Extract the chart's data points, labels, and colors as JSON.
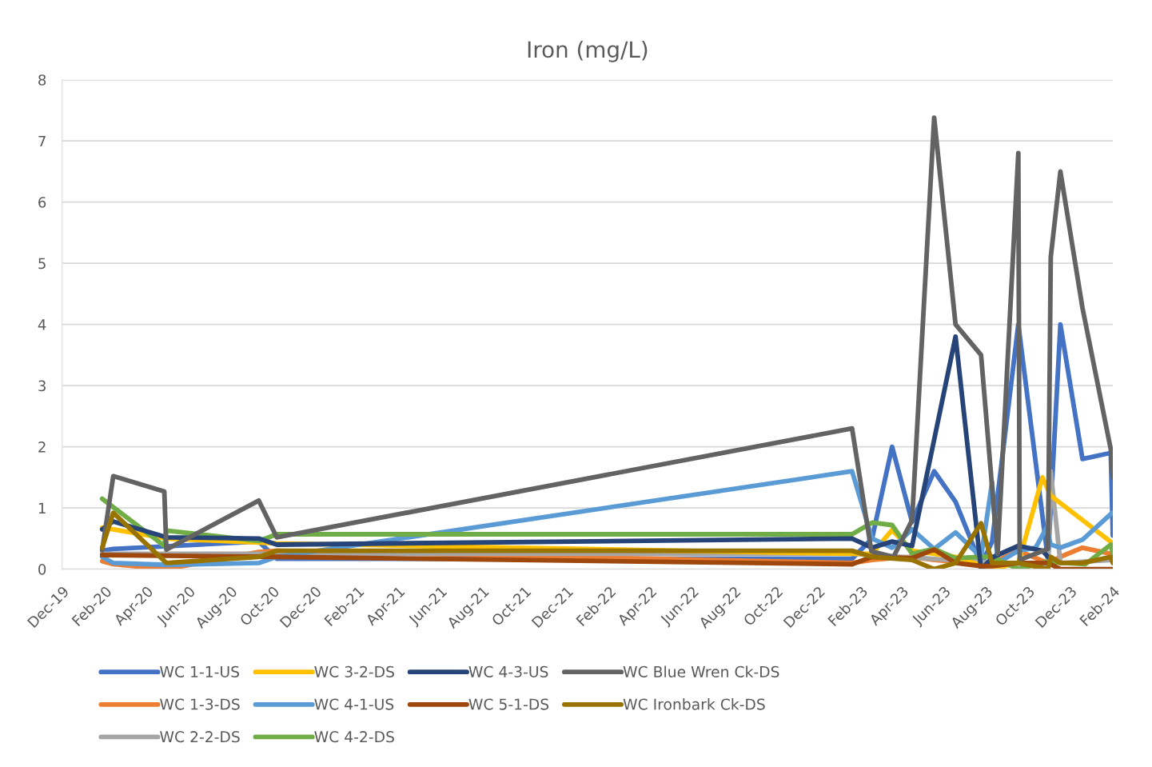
{
  "chart_data": {
    "type": "line",
    "title": "Iron (mg/L)",
    "xlim": [
      "2019-12-01",
      "2024-02-01"
    ],
    "xticks": [
      {
        "value": "2019-12",
        "label": "Dec-19"
      },
      {
        "value": "2020-02",
        "label": "Feb-20"
      },
      {
        "value": "2020-04",
        "label": "Apr-20"
      },
      {
        "value": "2020-06",
        "label": "Jun-20"
      },
      {
        "value": "2020-08",
        "label": "Aug-20"
      },
      {
        "value": "2020-10",
        "label": "Oct-20"
      },
      {
        "value": "2020-12",
        "label": "Dec-20"
      },
      {
        "value": "2021-02",
        "label": "Feb-21"
      },
      {
        "value": "2021-04",
        "label": "Apr-21"
      },
      {
        "value": "2021-06",
        "label": "Jun-21"
      },
      {
        "value": "2021-08",
        "label": "Aug-21"
      },
      {
        "value": "2021-10",
        "label": "Oct-21"
      },
      {
        "value": "2021-12",
        "label": "Dec-21"
      },
      {
        "value": "2022-02",
        "label": "Feb-22"
      },
      {
        "value": "2022-04",
        "label": "Apr-22"
      },
      {
        "value": "2022-06",
        "label": "Jun-22"
      },
      {
        "value": "2022-08",
        "label": "Aug-22"
      },
      {
        "value": "2022-10",
        "label": "Oct-22"
      },
      {
        "value": "2022-12",
        "label": "Dec-22"
      },
      {
        "value": "2023-02",
        "label": "Feb-23"
      },
      {
        "value": "2023-04",
        "label": "Apr-23"
      },
      {
        "value": "2023-06",
        "label": "Jun-23"
      },
      {
        "value": "2023-08",
        "label": "Aug-23"
      },
      {
        "value": "2023-10",
        "label": "Oct-23"
      },
      {
        "value": "2023-12",
        "label": "Dec-23"
      },
      {
        "value": "2024-02",
        "label": "Feb-24"
      }
    ],
    "ylim": [
      0,
      8
    ],
    "yticks": [
      0,
      1,
      2,
      3,
      4,
      5,
      6,
      7,
      8
    ],
    "grid": "y",
    "legend": "bottom",
    "marker": "none",
    "line_style": "solid",
    "series": [
      {
        "name": "WC 1-1-US",
        "color": "#4472c4",
        "x": [
          "2020-01-28",
          "2020-02-13",
          "2020-09-11",
          "2020-10-07",
          "2023-01-19",
          "2023-02-17",
          "2023-03-18",
          "2023-04-16",
          "2023-05-18",
          "2023-06-18",
          "2023-07-25",
          "2023-08-10",
          "2023-09-17",
          "2023-10-30",
          "2023-11-17",
          "2023-12-19",
          "2024-01-29",
          "2024-02-01"
        ],
        "values": [
          0.3,
          0.33,
          0.45,
          0.17,
          0.17,
          0.5,
          2.0,
          0.77,
          1.6,
          1.1,
          0.07,
          0.45,
          4.0,
          0.15,
          4.0,
          1.8,
          1.9,
          0.55
        ]
      },
      {
        "name": "WC 1-3-DS",
        "color": "#ed7d31",
        "x": [
          "2020-01-28",
          "2020-02-13",
          "2020-04-30",
          "2020-09-11",
          "2020-10-07",
          "2023-01-19",
          "2023-02-17",
          "2023-03-18",
          "2023-04-16",
          "2023-05-18",
          "2023-06-18",
          "2023-07-25",
          "2023-08-10",
          "2023-09-17",
          "2023-10-30",
          "2023-11-17",
          "2023-12-19",
          "2024-01-29",
          "2024-02-01"
        ],
        "values": [
          0.13,
          0.08,
          0.0,
          0.28,
          0.3,
          0.1,
          0.15,
          0.18,
          0.2,
          0.15,
          0.12,
          0.1,
          0.1,
          0.3,
          0.1,
          0.2,
          0.35,
          0.25,
          0.25
        ]
      },
      {
        "name": "WC 2-2-DS",
        "color": "#a5a5a5",
        "x": [
          "2020-01-28",
          "2020-10-07",
          "2023-01-19",
          "2023-10-30",
          "2023-11-03",
          "2023-11-17",
          "2024-02-01"
        ],
        "values": [
          0.25,
          0.25,
          0.25,
          0.05,
          1.6,
          0.1,
          0.15
        ]
      },
      {
        "name": "WC 3-2-DS",
        "color": "#ffc000",
        "x": [
          "2020-01-28",
          "2020-02-13",
          "2020-04-30",
          "2020-10-07",
          "2023-01-19",
          "2023-02-17",
          "2023-03-18",
          "2023-04-16",
          "2023-05-18",
          "2023-06-18",
          "2023-08-10",
          "2023-09-17",
          "2023-10-22",
          "2023-11-03",
          "2024-02-01"
        ],
        "values": [
          0.68,
          0.65,
          0.5,
          0.42,
          0.25,
          0.25,
          0.64,
          0.3,
          0.25,
          0.2,
          0.0,
          0.1,
          1.5,
          1.2,
          0.42
        ]
      },
      {
        "name": "WC 4-1-US",
        "color": "#5b9bd5",
        "x": [
          "2020-01-28",
          "2020-02-13",
          "2020-04-30",
          "2020-09-11",
          "2020-10-07",
          "2023-01-19",
          "2023-02-17",
          "2023-03-18",
          "2023-04-16",
          "2023-05-18",
          "2023-06-18",
          "2023-07-25",
          "2023-08-10",
          "2023-08-18",
          "2023-09-17",
          "2023-10-12",
          "2023-10-28",
          "2023-11-03",
          "2023-11-17",
          "2023-12-19",
          "2024-01-31"
        ],
        "values": [
          0.2,
          0.1,
          0.07,
          0.1,
          0.2,
          1.6,
          0.5,
          0.35,
          0.65,
          0.33,
          0.6,
          0.2,
          1.42,
          0.1,
          0.3,
          0.35,
          0.68,
          0.4,
          0.35,
          0.48,
          0.92
        ]
      },
      {
        "name": "WC 4-2-DS",
        "color": "#70ad47",
        "x": [
          "2020-01-28",
          "2020-04-27",
          "2020-04-30",
          "2020-09-11",
          "2020-10-07",
          "2023-01-19",
          "2023-02-17",
          "2023-03-18",
          "2023-04-16",
          "2023-05-18",
          "2023-06-18",
          "2023-07-25",
          "2023-08-10",
          "2023-09-17",
          "2023-10-28",
          "2023-11-23",
          "2023-12-23",
          "2024-01-29",
          "2024-02-01"
        ],
        "values": [
          1.15,
          0.38,
          0.63,
          0.46,
          0.57,
          0.57,
          0.76,
          0.72,
          0.25,
          0.33,
          0.18,
          0.2,
          0.2,
          0.0,
          0.12,
          0.1,
          0.08,
          0.4,
          0.25
        ]
      },
      {
        "name": "WC 4-3-US",
        "color": "#264478",
        "x": [
          "2020-01-28",
          "2020-02-13",
          "2020-04-30",
          "2020-09-11",
          "2020-10-07",
          "2023-01-19",
          "2023-02-17",
          "2023-03-18",
          "2023-04-16",
          "2023-06-18",
          "2023-07-25",
          "2023-08-12",
          "2023-09-17",
          "2023-10-22",
          "2023-10-30"
        ],
        "values": [
          0.65,
          0.78,
          0.52,
          0.5,
          0.4,
          0.5,
          0.35,
          0.45,
          0.38,
          3.8,
          0.0,
          0.2,
          0.38,
          0.3,
          0.2
        ]
      },
      {
        "name": "WC 5-1-DS",
        "color": "#9e480e",
        "x": [
          "2020-01-28",
          "2020-10-07",
          "2023-01-19",
          "2023-02-17",
          "2023-04-16",
          "2023-05-18",
          "2023-06-18",
          "2023-07-25",
          "2023-08-10",
          "2023-09-17",
          "2023-10-30",
          "2023-11-17",
          "2024-02-01"
        ],
        "values": [
          0.23,
          0.2,
          0.08,
          0.2,
          0.18,
          0.32,
          0.1,
          0.05,
          0.05,
          0.1,
          0.1,
          0.0,
          0.0
        ]
      },
      {
        "name": "WC Blue Wren Ck-DS",
        "color": "#636363",
        "x": [
          "2020-01-28",
          "2020-02-13",
          "2020-04-27",
          "2020-04-30",
          "2020-09-11",
          "2020-10-07",
          "2023-01-19",
          "2023-02-16",
          "2023-03-20",
          "2023-04-16",
          "2023-05-18",
          "2023-06-18",
          "2023-07-25",
          "2023-08-18",
          "2023-09-17",
          "2023-09-19",
          "2023-10-30",
          "2023-11-03",
          "2023-11-17",
          "2023-12-19",
          "2024-01-29",
          "2024-02-01"
        ],
        "values": [
          0.31,
          1.52,
          1.27,
          0.32,
          1.12,
          0.52,
          2.3,
          0.29,
          0.2,
          0.8,
          7.38,
          4.0,
          3.5,
          0.25,
          6.8,
          0.15,
          0.33,
          5.1,
          6.5,
          4.27,
          1.96,
          1.5
        ]
      },
      {
        "name": "WC Ironbark Ck-DS",
        "color": "#997300",
        "x": [
          "2020-01-28",
          "2020-02-13",
          "2020-04-30",
          "2020-09-11",
          "2020-10-07",
          "2023-01-19",
          "2023-02-17",
          "2023-04-16",
          "2023-05-18",
          "2023-06-18",
          "2023-07-25",
          "2023-08-10",
          "2023-09-17",
          "2023-10-30",
          "2023-11-03",
          "2023-11-17",
          "2023-12-19",
          "2024-01-29",
          "2024-02-01"
        ],
        "values": [
          0.35,
          0.92,
          0.1,
          0.2,
          0.3,
          0.3,
          0.2,
          0.15,
          0.0,
          0.1,
          0.75,
          0.1,
          0.1,
          0.0,
          0.2,
          0.1,
          0.1,
          0.2,
          0.1
        ]
      }
    ]
  }
}
